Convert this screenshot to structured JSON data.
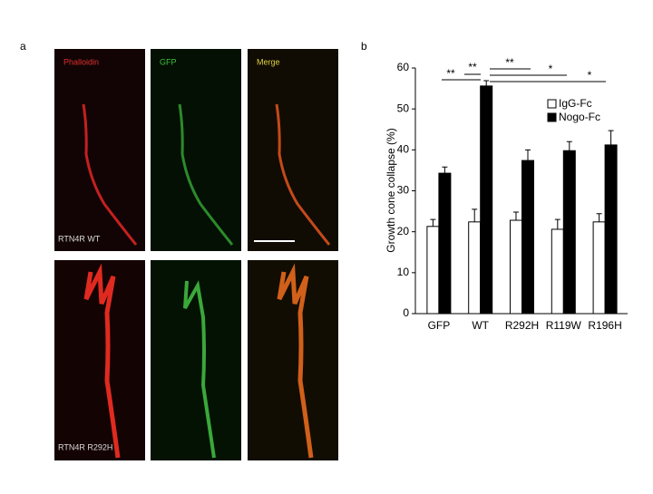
{
  "panel_labels": [
    "a",
    "b"
  ],
  "panel_a": {
    "column_labels": [
      "Phalloidin",
      "GFP",
      "Merge"
    ],
    "row_labels": [
      "RTN4R WT",
      "RTN4R R292H"
    ]
  },
  "chart_data": {
    "type": "bar",
    "ylabel": "Growth cone collapse (%)",
    "categories": [
      "GFP",
      "WT",
      "R292H",
      "R119W",
      "R196H"
    ],
    "series": [
      {
        "name": "IgG-Fc",
        "color": "#ffffff",
        "values": [
          21.3,
          22.4,
          22.8,
          20.6,
          22.4
        ],
        "errors": [
          1.7,
          3.1,
          2.0,
          2.4,
          2.0
        ]
      },
      {
        "name": "Nogo-Fc",
        "color": "#000000",
        "values": [
          34.3,
          55.6,
          37.4,
          39.8,
          41.2
        ],
        "errors": [
          1.5,
          1.3,
          2.6,
          2.2,
          3.5
        ]
      }
    ],
    "ylim": [
      0,
      60
    ],
    "yticks": [
      0,
      10,
      20,
      30,
      40,
      50,
      60
    ],
    "legend": "upper right",
    "annotations": [
      "**",
      "**",
      "**",
      "*",
      "*"
    ]
  }
}
